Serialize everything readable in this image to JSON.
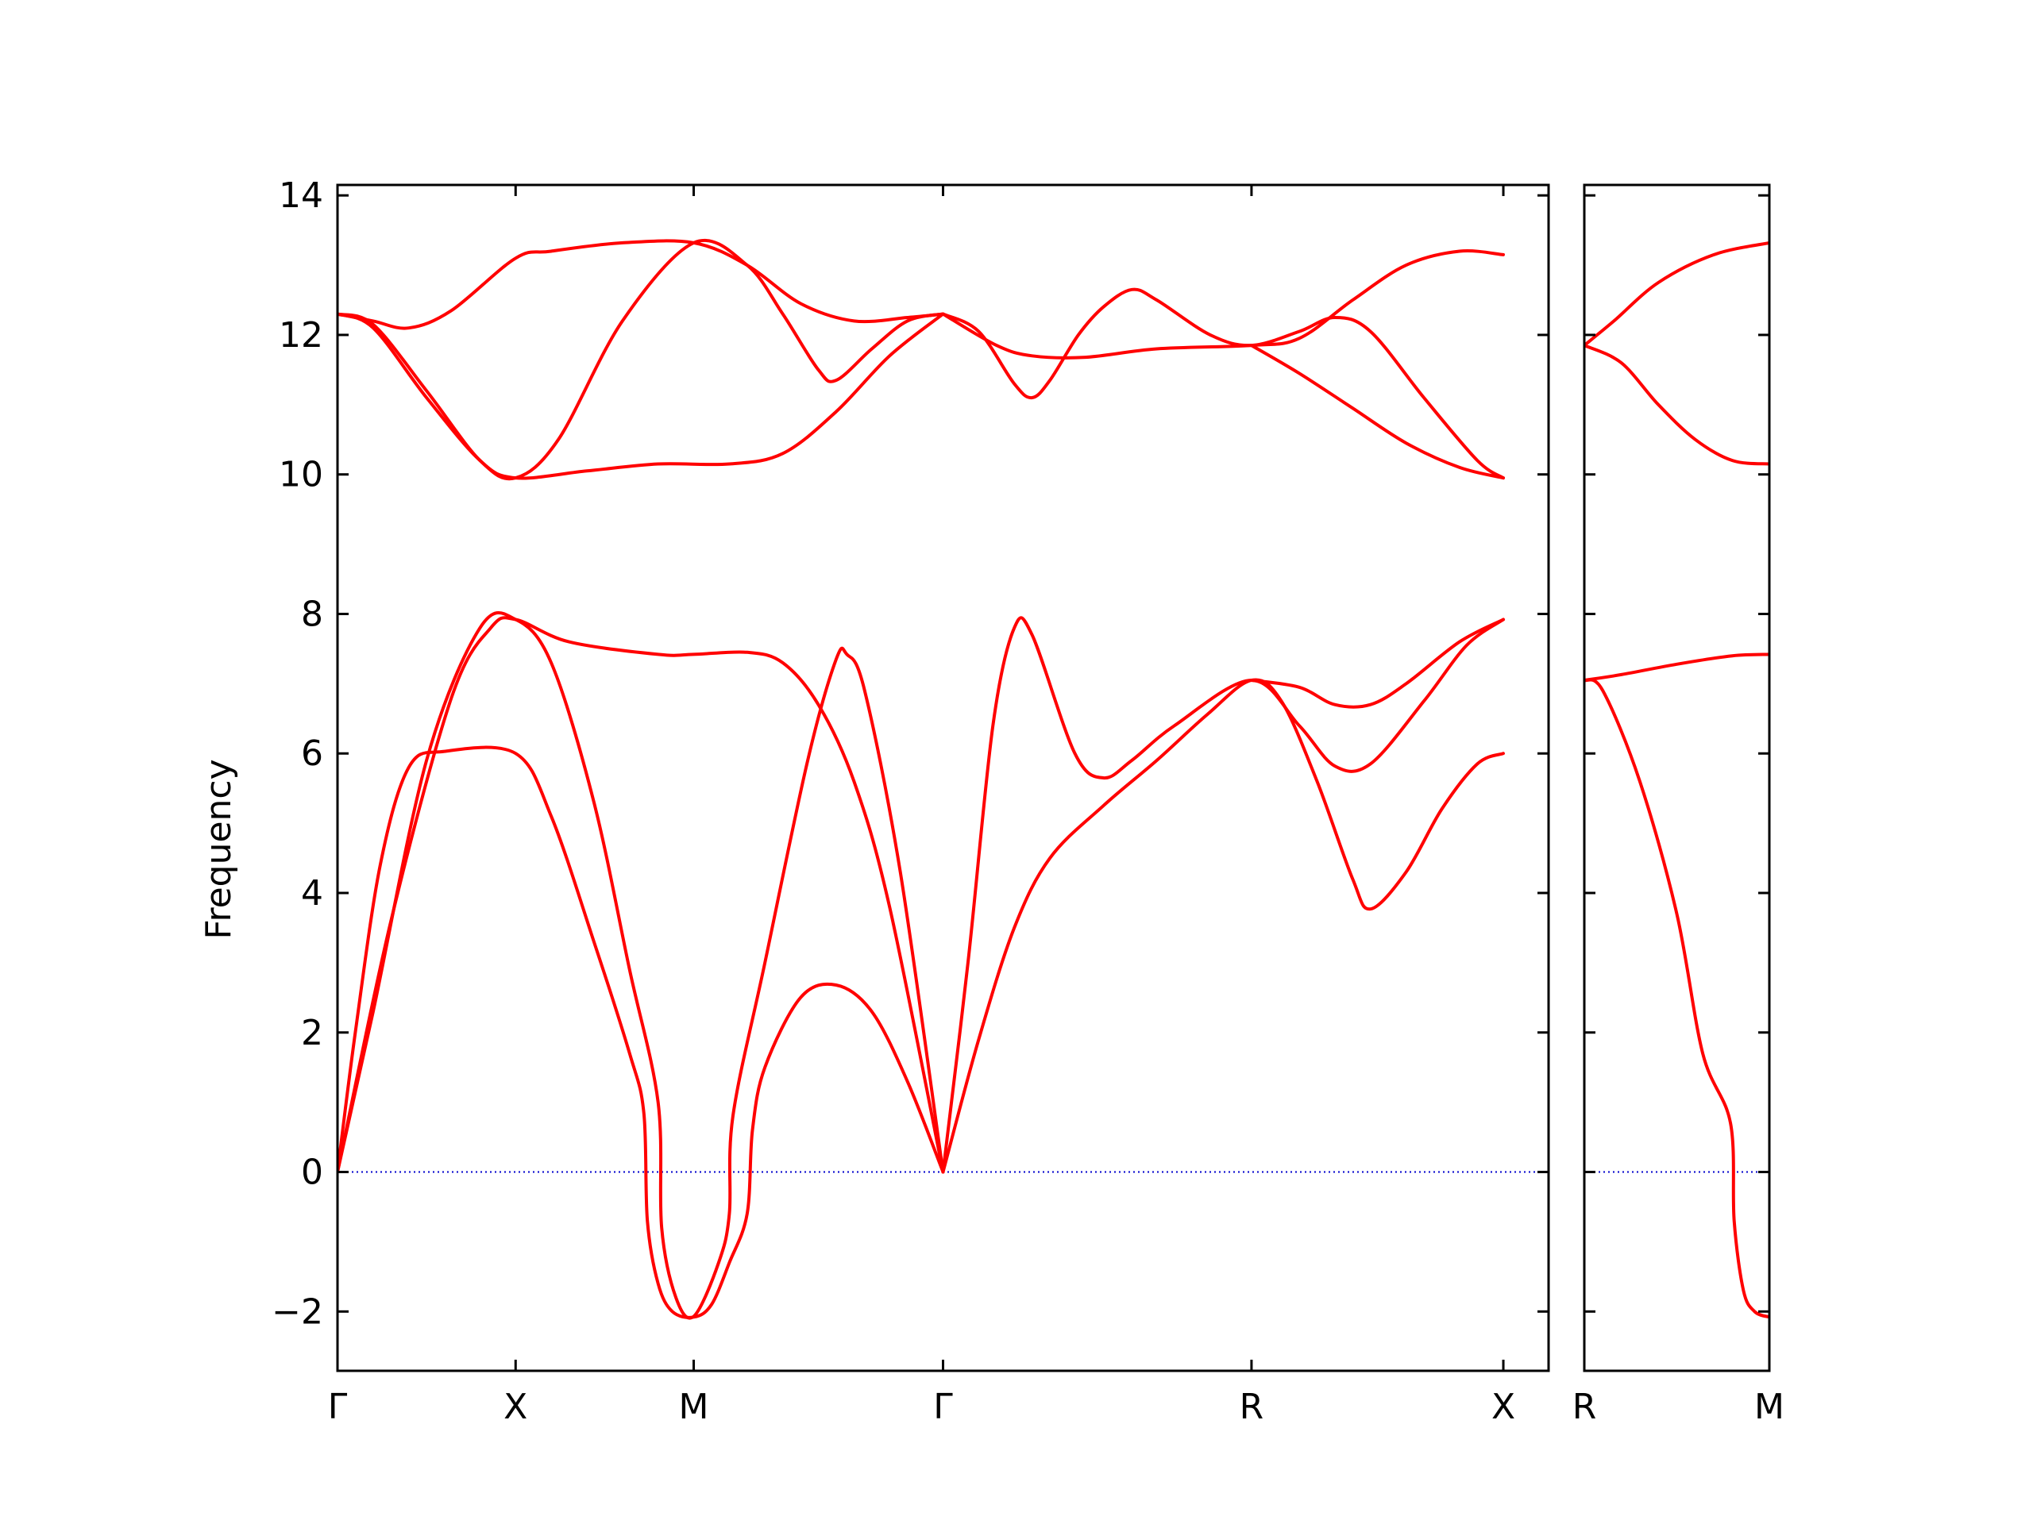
{
  "chart_data": {
    "type": "line",
    "ylabel": "Frequency",
    "ylim": [
      -2.85,
      14.15
    ],
    "yticks": [
      "14",
      "12",
      "10",
      "8",
      "6",
      "4",
      "2",
      "0",
      "−2"
    ],
    "ytick_values": [
      14,
      12,
      10,
      8,
      6,
      4,
      2,
      0,
      -2
    ],
    "line_color": "#ff0000",
    "zero_line_color": "#0000cc",
    "panels": [
      {
        "x_range": [
          0,
          3.4
        ],
        "kpoints": [
          {
            "label": "Γ",
            "x": 0
          },
          {
            "label": "X",
            "x": 0.5
          },
          {
            "label": "M",
            "x": 1.0
          },
          {
            "label": "Γ",
            "x": 1.7
          },
          {
            "label": "R",
            "x": 2.566
          },
          {
            "label": "X",
            "x": 3.273
          }
        ],
        "series": [
          {
            "points": [
              [
                0,
                0
              ],
              [
                0.05,
                2.0
              ],
              [
                0.12,
                4.4
              ],
              [
                0.2,
                5.8
              ],
              [
                0.3,
                6.03
              ],
              [
                0.5,
                6.0
              ],
              [
                0.6,
                5.1
              ],
              [
                0.72,
                3.3
              ],
              [
                0.82,
                1.7
              ],
              [
                0.86,
                0.85
              ],
              [
                0.87,
                -0.7
              ],
              [
                0.9,
                -1.6
              ],
              [
                0.94,
                -2.0
              ],
              [
                1.0,
                -2.08
              ],
              [
                1.05,
                -1.9
              ],
              [
                1.1,
                -1.3
              ],
              [
                1.15,
                -0.6
              ],
              [
                1.165,
                0.6
              ],
              [
                1.2,
                1.5
              ],
              [
                1.3,
                2.5
              ],
              [
                1.4,
                2.68
              ],
              [
                1.5,
                2.3
              ],
              [
                1.6,
                1.3
              ],
              [
                1.7,
                0
              ]
            ]
          },
          {
            "points": [
              [
                0,
                0
              ],
              [
                0.1,
                2.3
              ],
              [
                0.25,
                5.9
              ],
              [
                0.4,
                7.8
              ],
              [
                0.5,
                7.92
              ],
              [
                0.6,
                7.3
              ],
              [
                0.72,
                5.3
              ],
              [
                0.82,
                2.9
              ],
              [
                0.9,
                1.0
              ],
              [
                0.91,
                -0.8
              ],
              [
                0.95,
                -1.8
              ],
              [
                1.0,
                -2.07
              ],
              [
                1.07,
                -1.3
              ],
              [
                1.1,
                -0.6
              ],
              [
                1.11,
                0.8
              ],
              [
                1.2,
                3.0
              ],
              [
                1.32,
                5.9
              ],
              [
                1.4,
                7.35
              ],
              [
                1.43,
                7.42
              ],
              [
                1.48,
                6.9
              ],
              [
                1.58,
                4.3
              ],
              [
                1.7,
                0
              ]
            ]
          },
          {
            "points": [
              [
                0,
                0
              ],
              [
                0.15,
                3.6
              ],
              [
                0.32,
                6.8
              ],
              [
                0.43,
                7.8
              ],
              [
                0.5,
                7.92
              ],
              [
                0.65,
                7.6
              ],
              [
                0.9,
                7.42
              ],
              [
                1.0,
                7.42
              ],
              [
                1.15,
                7.45
              ],
              [
                1.25,
                7.3
              ],
              [
                1.35,
                6.7
              ],
              [
                1.45,
                5.6
              ],
              [
                1.55,
                3.8
              ],
              [
                1.7,
                0
              ]
            ]
          },
          {
            "points": [
              [
                1.7,
                0
              ],
              [
                1.8,
                1.9
              ],
              [
                1.9,
                3.5
              ],
              [
                2.0,
                4.5
              ],
              [
                2.15,
                5.25
              ],
              [
                2.3,
                5.9
              ],
              [
                2.44,
                6.55
              ],
              [
                2.566,
                7.05
              ],
              [
                2.65,
                6.75
              ],
              [
                2.75,
                5.6
              ],
              [
                2.85,
                4.2
              ],
              [
                2.9,
                3.77
              ],
              [
                3.0,
                4.3
              ],
              [
                3.1,
                5.2
              ],
              [
                3.2,
                5.85
              ],
              [
                3.273,
                6.0
              ]
            ]
          },
          {
            "points": [
              [
                1.7,
                0
              ],
              [
                1.77,
                3.0
              ],
              [
                1.84,
                6.4
              ],
              [
                1.9,
                7.8
              ],
              [
                1.95,
                7.7
              ],
              [
                2.07,
                6.0
              ],
              [
                2.15,
                5.65
              ],
              [
                2.23,
                5.9
              ],
              [
                2.35,
                6.4
              ],
              [
                2.566,
                7.05
              ],
              [
                2.7,
                6.4
              ],
              [
                2.8,
                5.82
              ],
              [
                2.9,
                5.85
              ],
              [
                3.05,
                6.75
              ],
              [
                3.17,
                7.55
              ],
              [
                3.273,
                7.92
              ]
            ]
          },
          {
            "points": [
              [
                2.566,
                7.05
              ],
              [
                2.7,
                6.95
              ],
              [
                2.8,
                6.7
              ],
              [
                2.9,
                6.7
              ],
              [
                3.0,
                7.0
              ],
              [
                3.15,
                7.6
              ],
              [
                3.273,
                7.92
              ]
            ]
          },
          {
            "points": [
              [
                0,
                12.3
              ],
              [
                0.1,
                12.1
              ],
              [
                0.25,
                11.1
              ],
              [
                0.4,
                10.2
              ],
              [
                0.5,
                9.95
              ],
              [
                0.7,
                10.05
              ],
              [
                0.9,
                10.15
              ],
              [
                1.1,
                10.15
              ],
              [
                1.25,
                10.3
              ],
              [
                1.4,
                10.9
              ],
              [
                1.55,
                11.7
              ],
              [
                1.7,
                12.3
              ]
            ]
          },
          {
            "points": [
              [
                0,
                12.3
              ],
              [
                0.1,
                12.2
              ],
              [
                0.2,
                12.1
              ],
              [
                0.32,
                12.35
              ],
              [
                0.5,
                13.1
              ],
              [
                0.6,
                13.2
              ],
              [
                0.8,
                13.32
              ],
              [
                1.0,
                13.32
              ],
              [
                1.15,
                13.0
              ],
              [
                1.3,
                12.45
              ],
              [
                1.45,
                12.2
              ],
              [
                1.6,
                12.25
              ],
              [
                1.7,
                12.3
              ]
            ]
          },
          {
            "points": [
              [
                0,
                12.3
              ],
              [
                0.1,
                12.15
              ],
              [
                0.25,
                11.2
              ],
              [
                0.4,
                10.2
              ],
              [
                0.5,
                9.95
              ],
              [
                0.62,
                10.5
              ],
              [
                0.8,
                12.2
              ],
              [
                1.0,
                13.32
              ],
              [
                1.15,
                13.0
              ],
              [
                1.25,
                12.3
              ],
              [
                1.35,
                11.5
              ],
              [
                1.4,
                11.35
              ],
              [
                1.5,
                11.8
              ],
              [
                1.6,
                12.2
              ],
              [
                1.7,
                12.3
              ]
            ]
          },
          {
            "points": [
              [
                1.7,
                12.3
              ],
              [
                1.85,
                11.85
              ],
              [
                1.95,
                11.7
              ],
              [
                2.1,
                11.68
              ],
              [
                2.3,
                11.8
              ],
              [
                2.566,
                11.85
              ],
              [
                2.7,
                11.95
              ],
              [
                2.85,
                12.5
              ],
              [
                3.0,
                13.0
              ],
              [
                3.15,
                13.2
              ],
              [
                3.273,
                13.15
              ]
            ]
          },
          {
            "points": [
              [
                1.7,
                12.3
              ],
              [
                1.8,
                12.05
              ],
              [
                1.9,
                11.3
              ],
              [
                1.95,
                11.1
              ],
              [
                2.0,
                11.35
              ],
              [
                2.08,
                12.0
              ],
              [
                2.15,
                12.4
              ],
              [
                2.23,
                12.65
              ],
              [
                2.3,
                12.5
              ],
              [
                2.45,
                12.0
              ],
              [
                2.566,
                11.85
              ],
              [
                2.7,
                12.05
              ],
              [
                2.8,
                12.25
              ],
              [
                2.9,
                12.05
              ],
              [
                3.05,
                11.1
              ],
              [
                3.2,
                10.2
              ],
              [
                3.273,
                9.95
              ]
            ]
          },
          {
            "points": [
              [
                2.566,
                11.85
              ],
              [
                2.7,
                11.45
              ],
              [
                2.85,
                10.95
              ],
              [
                3.0,
                10.45
              ],
              [
                3.15,
                10.1
              ],
              [
                3.273,
                9.95
              ]
            ]
          }
        ]
      },
      {
        "x_range": [
          0,
          0.5
        ],
        "kpoints": [
          {
            "label": "R",
            "x": 0
          },
          {
            "label": "M",
            "x": 0.5
          }
        ],
        "series": [
          {
            "points": [
              [
                0,
                7.05
              ],
              [
                0.1,
                7.13
              ],
              [
                0.25,
                7.28
              ],
              [
                0.4,
                7.4
              ],
              [
                0.5,
                7.42
              ]
            ]
          },
          {
            "points": [
              [
                0,
                7.05
              ],
              [
                0.05,
                6.9
              ],
              [
                0.15,
                5.6
              ],
              [
                0.25,
                3.7
              ],
              [
                0.32,
                1.7
              ],
              [
                0.395,
                0.7
              ],
              [
                0.405,
                -0.7
              ],
              [
                0.43,
                -1.7
              ],
              [
                0.46,
                -2.0
              ],
              [
                0.5,
                -2.08
              ]
            ]
          },
          {
            "points": [
              [
                0,
                11.85
              ],
              [
                0.08,
                12.2
              ],
              [
                0.2,
                12.75
              ],
              [
                0.35,
                13.15
              ],
              [
                0.5,
                13.32
              ]
            ]
          },
          {
            "points": [
              [
                0,
                11.85
              ],
              [
                0.1,
                11.6
              ],
              [
                0.2,
                11.0
              ],
              [
                0.3,
                10.5
              ],
              [
                0.4,
                10.2
              ],
              [
                0.5,
                10.15
              ]
            ]
          }
        ]
      }
    ]
  }
}
